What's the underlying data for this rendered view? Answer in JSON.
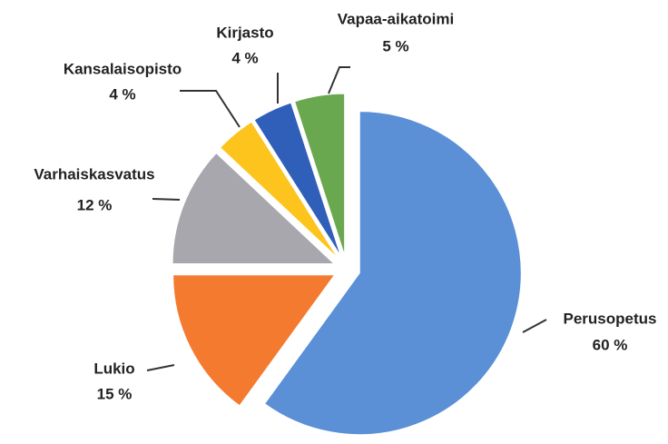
{
  "chart_data": {
    "type": "pie",
    "categories": [
      "Perusopetus",
      "Lukio",
      "Varhaiskasvatus",
      "Kansalaisopisto",
      "Kirjasto",
      "Vapaa-aikatoimi"
    ],
    "values": [
      60,
      15,
      12,
      4,
      4,
      5
    ],
    "value_labels": [
      "60 %",
      "15 %",
      "12 %",
      "4 %",
      "4 %",
      "5 %"
    ],
    "colors": [
      "#5b8fd6",
      "#f47a30",
      "#a7a7ad",
      "#fcc41c",
      "#2f5fb8",
      "#6aa84f"
    ]
  }
}
